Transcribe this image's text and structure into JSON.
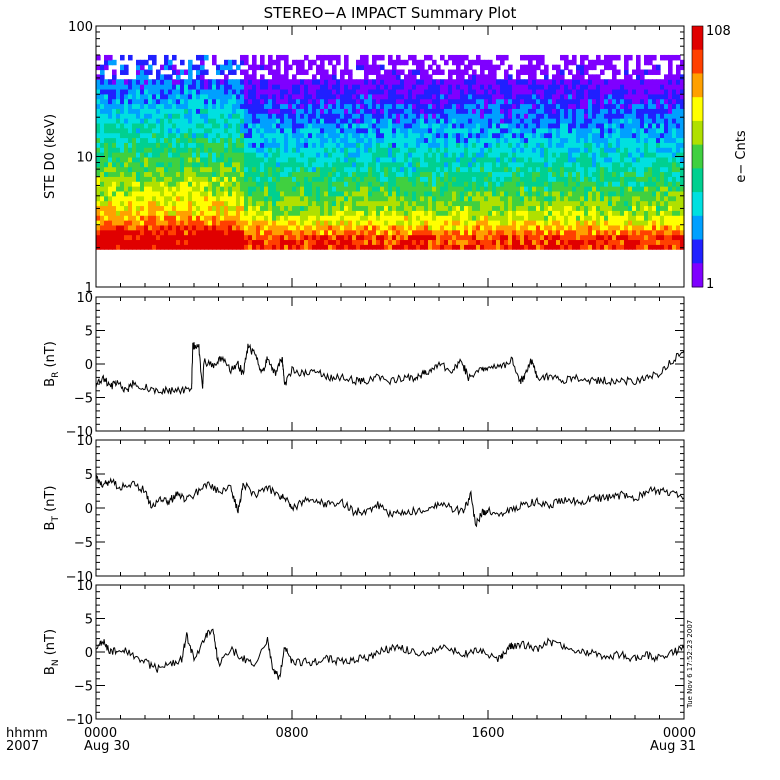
{
  "title": "STEREO−A IMPACT Summary Plot",
  "timestamp": "Tue Nov  6 17:52:23 2007",
  "x_axis": {
    "row_label_1": "hhmm",
    "row_label_2": "2007",
    "tick_times": [
      "0000",
      "0800",
      "1600",
      "0000"
    ],
    "tick_dates": [
      "Aug 30",
      "",
      "",
      "Aug 31"
    ],
    "range_hours": [
      0,
      24
    ]
  },
  "chart_data": [
    {
      "type": "heatmap",
      "name": "spectrogram",
      "ylabel": "STE D0 (keV)",
      "yscale": "log",
      "ylim": [
        1,
        100
      ],
      "ytick_values": [
        1,
        10,
        100
      ],
      "ytick_labels": [
        "1",
        "10",
        "100"
      ],
      "colorbar": {
        "label": "e− Cnts",
        "min_label": "1",
        "max_label": "108",
        "scale": "log"
      },
      "colors": [
        "#7f00ff",
        "#2020ff",
        "#00a0ff",
        "#00e0e0",
        "#00d090",
        "#40d040",
        "#b0e000",
        "#ffff00",
        "#ffa000",
        "#ff4000",
        "#e00000"
      ],
      "energy_range": [
        1.95,
        60
      ],
      "profile": [
        {
          "energy": 2.0,
          "counts": 70
        },
        {
          "energy": 2.5,
          "counts": 55
        },
        {
          "energy": 3.2,
          "counts": 24
        },
        {
          "energy": 4.0,
          "counts": 15
        },
        {
          "energy": 6.0,
          "counts": 9
        },
        {
          "energy": 10.0,
          "counts": 5
        },
        {
          "energy": 20.0,
          "counts": 2.5
        },
        {
          "energy": 40.0,
          "counts": 1.2
        },
        {
          "energy": 60.0,
          "counts": 1
        }
      ],
      "enhancement": {
        "hours": [
          0,
          6
        ],
        "factor": 1.8
      }
    },
    {
      "type": "line",
      "name": "BR",
      "ylabel": "B",
      "ylabel_sub": "R",
      "ylabel_unit": " (nT)",
      "ylim": [
        -10,
        10
      ],
      "ytick_values": [
        -10,
        -5,
        0,
        5,
        10
      ],
      "ytick_labels": [
        "−10",
        "−5",
        "0",
        "5",
        "10"
      ],
      "x": [
        0,
        0.3,
        0.6,
        0.9,
        1.2,
        1.5,
        2.0,
        2.5,
        3.0,
        3.5,
        3.9,
        3.95,
        4.2,
        4.35,
        4.4,
        4.8,
        5.1,
        5.5,
        5.8,
        6.0,
        6.2,
        6.5,
        6.8,
        7.0,
        7.3,
        7.6,
        7.7,
        8.0,
        8.5,
        9.0,
        9.5,
        10.0,
        10.6,
        11.0,
        11.5,
        12.0,
        12.5,
        13.0,
        13.3,
        13.6,
        14.0,
        14.5,
        14.9,
        15.2,
        15.7,
        16.0,
        16.5,
        17.0,
        17.3,
        17.5,
        17.8,
        18.0,
        18.5,
        19.0,
        19.5,
        20.0,
        20.5,
        21.0,
        21.5,
        22.0,
        22.5,
        23.0,
        23.5,
        24.0
      ],
      "y": [
        -3,
        -2,
        -3.5,
        -2.5,
        -4,
        -3,
        -3.5,
        -4,
        -4,
        -4,
        -4,
        2.8,
        2.5,
        -4,
        0.5,
        -0.5,
        1,
        -1,
        0,
        -1.5,
        2.5,
        1.5,
        -1.5,
        1,
        -1.5,
        1,
        -3,
        -1,
        -1.5,
        -1,
        -2,
        -2,
        -2.5,
        -2.5,
        -2,
        -2.5,
        -2,
        -2,
        -1.5,
        -1,
        0,
        -1,
        0.5,
        -2,
        -1,
        -0.5,
        -0.5,
        0.5,
        -2.5,
        -2,
        0.8,
        -2,
        -2,
        -2.5,
        -2,
        -2.5,
        -2.5,
        -2.5,
        -2.5,
        -2.5,
        -2,
        -1.5,
        0.5,
        2
      ]
    },
    {
      "type": "line",
      "name": "BT",
      "ylabel": "B",
      "ylabel_sub": "T",
      "ylabel_unit": " (nT)",
      "ylim": [
        -10,
        10
      ],
      "ytick_values": [
        -10,
        -5,
        0,
        5,
        10
      ],
      "ytick_labels": [
        "−10",
        "−5",
        "0",
        "5",
        "10"
      ],
      "x": [
        0,
        0.3,
        0.6,
        1.0,
        1.5,
        2.0,
        2.3,
        2.7,
        3.0,
        3.3,
        3.6,
        4.0,
        4.5,
        5.0,
        5.5,
        5.8,
        6.0,
        6.5,
        7.0,
        7.5,
        7.8,
        8.0,
        8.5,
        9.0,
        9.5,
        10.0,
        10.5,
        11.0,
        11.5,
        12.0,
        12.5,
        13.0,
        13.5,
        14.0,
        14.5,
        15.0,
        15.3,
        15.5,
        15.8,
        16.0,
        16.5,
        17.0,
        17.5,
        18.0,
        18.5,
        19.0,
        19.5,
        20.0,
        20.5,
        21.0,
        21.5,
        22.0,
        22.5,
        23.0,
        23.5,
        24.0
      ],
      "y": [
        4.5,
        3.5,
        4,
        3,
        3.5,
        2.5,
        0,
        1.5,
        1,
        2,
        1.5,
        2,
        3.5,
        2.5,
        3,
        -0.5,
        3.5,
        2,
        3,
        1.5,
        1.5,
        0,
        1,
        1,
        0.5,
        1,
        -0.5,
        -0.5,
        0.5,
        -1,
        -0.5,
        -0.5,
        0,
        0.5,
        0,
        -0.5,
        2,
        -2.5,
        -0.5,
        -0.5,
        -1,
        0,
        0.5,
        1,
        0.5,
        1,
        1,
        1,
        1.5,
        1.5,
        2,
        1.5,
        2.5,
        2.5,
        2,
        1.5
      ]
    },
    {
      "type": "line",
      "name": "BN",
      "ylabel": "B",
      "ylabel_sub": "N",
      "ylabel_unit": " (nT)",
      "ylim": [
        -10,
        10
      ],
      "ytick_values": [
        -10,
        -5,
        0,
        5,
        10
      ],
      "ytick_labels": [
        "−10",
        "−5",
        "0",
        "5",
        "10"
      ],
      "x": [
        0,
        0.3,
        0.6,
        1.0,
        1.5,
        2.0,
        2.5,
        3.0,
        3.5,
        3.7,
        4.0,
        4.5,
        4.8,
        5.0,
        5.5,
        6.0,
        6.5,
        7.0,
        7.2,
        7.5,
        7.7,
        8.0,
        8.5,
        9.0,
        9.5,
        10.0,
        10.5,
        11.0,
        11.5,
        12.0,
        12.5,
        13.0,
        13.5,
        14.0,
        14.5,
        15.0,
        15.5,
        16.0,
        16.5,
        16.8,
        17.0,
        17.5,
        18.0,
        18.5,
        19.0,
        19.5,
        20.0,
        20.5,
        21.0,
        21.5,
        22.0,
        22.5,
        23.0,
        23.5,
        24.0
      ],
      "y": [
        1,
        1.5,
        0,
        0.5,
        -0.5,
        -1.5,
        -2.5,
        -2,
        -1,
        2.5,
        -1,
        2.5,
        3,
        -2,
        0.5,
        -1,
        -2,
        2,
        -2.5,
        -4,
        1,
        -1.5,
        -1.5,
        -1.5,
        -1,
        -1.5,
        -1,
        -1,
        0,
        0.5,
        0.5,
        0,
        0,
        0.5,
        0.5,
        -0.5,
        0.5,
        -0.5,
        -1,
        0.5,
        1,
        1,
        0.5,
        1.5,
        1,
        0.5,
        0,
        -0.5,
        -0.5,
        -0.5,
        -1,
        -0.5,
        -1,
        0,
        0.5
      ]
    }
  ]
}
